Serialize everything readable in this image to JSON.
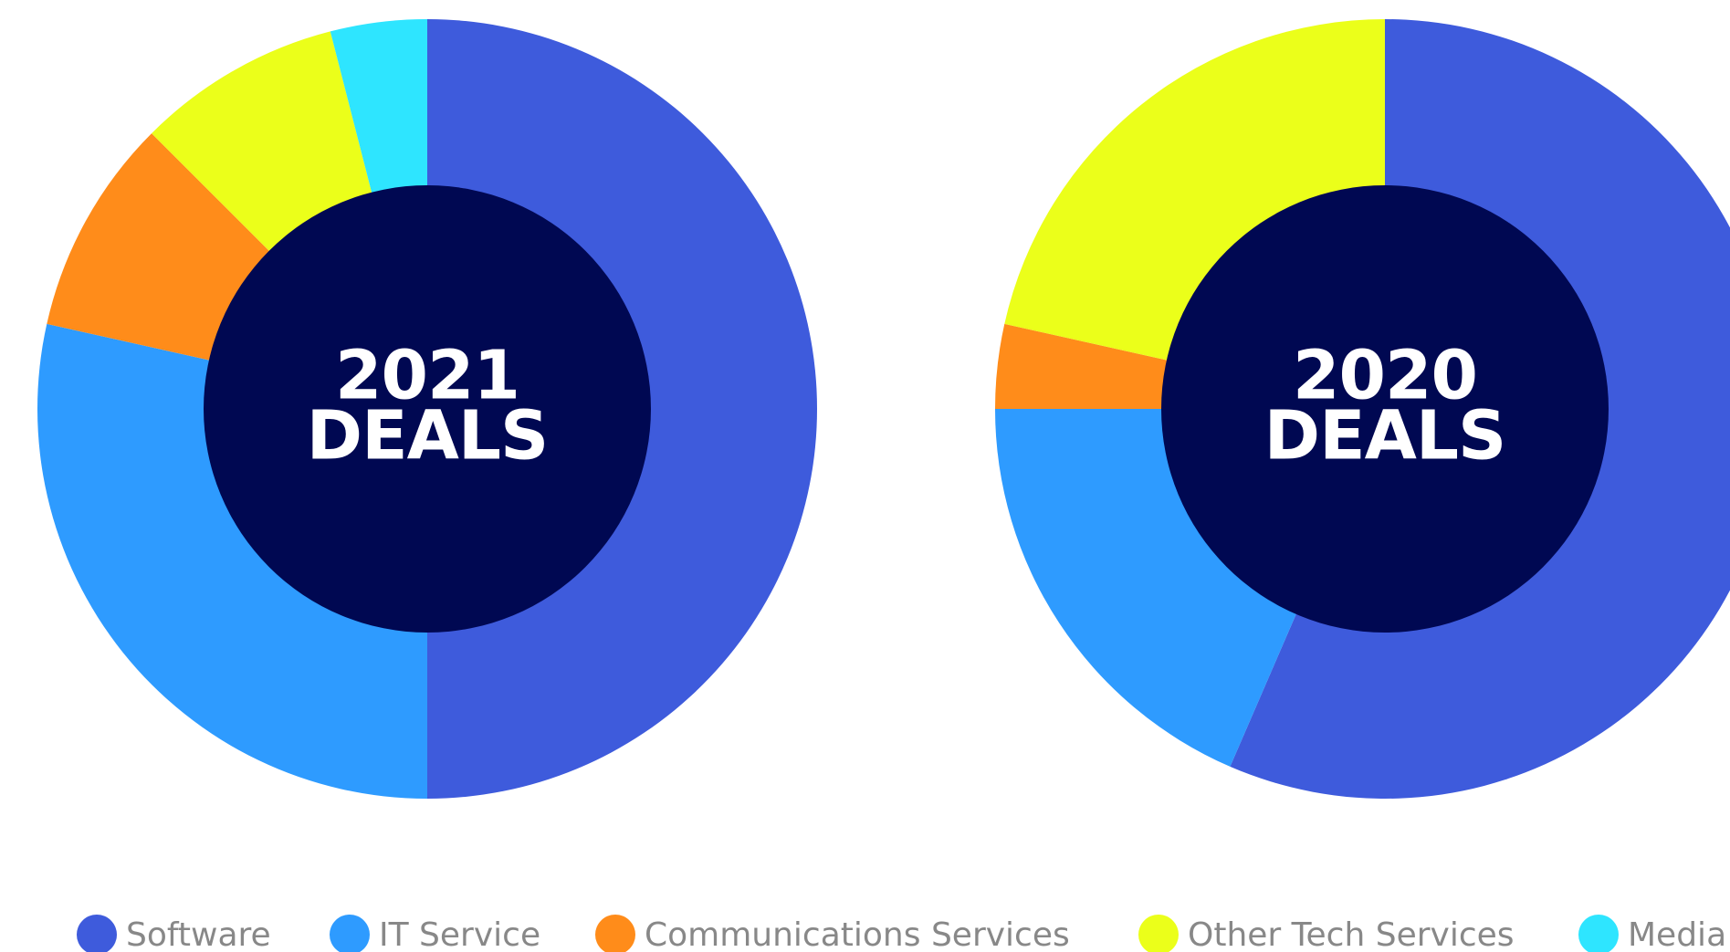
{
  "chart_data": [
    {
      "type": "pie",
      "title_lines": [
        "2021",
        "DEALS"
      ],
      "categories": [
        "Software",
        "IT Service",
        "Communications Services",
        "Other Tech Services",
        "Media"
      ],
      "values": [
        50,
        28.5,
        9,
        8.5,
        4
      ],
      "colors": [
        "#3e5bdc",
        "#2e9bff",
        "#ff8c1a",
        "#ebff1a",
        "#2ee5ff"
      ]
    },
    {
      "type": "pie",
      "title_lines": [
        "2020",
        "DEALS"
      ],
      "categories": [
        "Software",
        "IT Service",
        "Communications Services",
        "Other Tech Services",
        "Media"
      ],
      "values": [
        56.5,
        18.5,
        3.5,
        21.5,
        0
      ],
      "colors": [
        "#3e5bdc",
        "#2e9bff",
        "#ff8c1a",
        "#ebff1a",
        "#2ee5ff"
      ]
    }
  ]
}
